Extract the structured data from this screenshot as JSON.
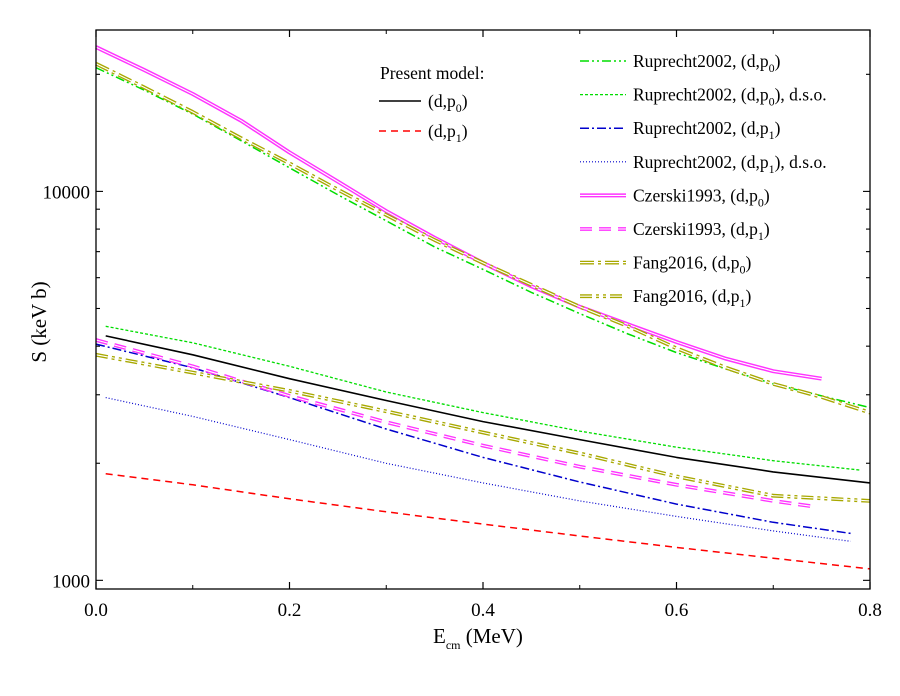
{
  "chart_data": {
    "type": "line",
    "xlabel_main": "E",
    "xlabel_sub": "cm",
    "xlabel_unit": " (MeV)",
    "ylabel": "S (keV b)",
    "xlim": [
      0.0,
      0.8
    ],
    "ylim": [
      950,
      26000
    ],
    "yscale": "log",
    "x_ticks": [
      0.0,
      0.2,
      0.4,
      0.6,
      0.8
    ],
    "x_tick_labels": [
      "0.0",
      "0.2",
      "0.4",
      "0.6",
      "0.8"
    ],
    "y_tick_labels": [
      {
        "value": 1000,
        "label": "1000"
      },
      {
        "value": 10000,
        "label": "10000"
      }
    ],
    "legend_header": "Present model:",
    "legend_left": [
      {
        "series": "present_dp0",
        "label_pre": "(d,p",
        "label_sub": "0",
        "label_post": ")"
      },
      {
        "series": "present_dp1",
        "label_pre": "(d,p",
        "label_sub": "1",
        "label_post": ")"
      }
    ],
    "legend_right": [
      {
        "series": "rup_dp0",
        "label_pre": "Ruprecht2002, (d,p",
        "label_sub": "0",
        "label_post": ")"
      },
      {
        "series": "rup_dp0_dso",
        "label_pre": "Ruprecht2002, (d,p",
        "label_sub": "0",
        "label_post": "), d.s.o."
      },
      {
        "series": "rup_dp1",
        "label_pre": "Ruprecht2002, (d,p",
        "label_sub": "1",
        "label_post": ")"
      },
      {
        "series": "rup_dp1_dso",
        "label_pre": "Ruprecht2002, (d,p",
        "label_sub": "1",
        "label_post": "), d.s.o."
      },
      {
        "series": "cze_dp0",
        "label_pre": "Czerski1993, (d,p",
        "label_sub": "0",
        "label_post": ")"
      },
      {
        "series": "cze_dp1",
        "label_pre": "Czerski1993, (d,p",
        "label_sub": "1",
        "label_post": ")"
      },
      {
        "series": "fang_dp0",
        "label_pre": "Fang2016, (d,p",
        "label_sub": "0",
        "label_post": ")"
      },
      {
        "series": "fang_dp1",
        "label_pre": "Fang2016, (d,p",
        "label_sub": "1",
        "label_post": ")"
      }
    ],
    "series": [
      {
        "id": "present_dp0",
        "name": "Present model (d,p0)",
        "color": "#000000",
        "style": "solid",
        "width": 1.6,
        "x": [
          0.01,
          0.1,
          0.2,
          0.3,
          0.4,
          0.5,
          0.6,
          0.7,
          0.8
        ],
        "y": [
          4250,
          3800,
          3300,
          2900,
          2560,
          2300,
          2070,
          1900,
          1780
        ]
      },
      {
        "id": "present_dp1",
        "name": "Present model (d,p1)",
        "color": "#ff0000",
        "style": "dash",
        "width": 1.5,
        "x": [
          0.01,
          0.1,
          0.2,
          0.3,
          0.4,
          0.5,
          0.6,
          0.7,
          0.8
        ],
        "y": [
          1880,
          1760,
          1620,
          1500,
          1395,
          1300,
          1215,
          1140,
          1070
        ]
      },
      {
        "id": "rup_dp0",
        "name": "Ruprecht2002 (d,p0)",
        "color": "#00dd00",
        "style": "dashdotdot",
        "width": 1.5,
        "x": [
          0.0,
          0.05,
          0.1,
          0.15,
          0.2,
          0.25,
          0.3,
          0.35,
          0.4,
          0.45,
          0.5,
          0.55,
          0.6,
          0.65,
          0.7,
          0.75,
          0.8
        ],
        "y": [
          20800,
          18200,
          15800,
          13500,
          11500,
          9800,
          8400,
          7200,
          6300,
          5500,
          4850,
          4300,
          3850,
          3500,
          3200,
          2980,
          2780
        ]
      },
      {
        "id": "rup_dp0_dso",
        "name": "Ruprecht2002 (d,p0) d.s.o.",
        "color": "#00dd00",
        "style": "shortdash",
        "width": 1.3,
        "x": [
          0.01,
          0.1,
          0.2,
          0.3,
          0.4,
          0.5,
          0.6,
          0.7,
          0.79
        ],
        "y": [
          4500,
          4080,
          3550,
          3050,
          2700,
          2420,
          2200,
          2030,
          1920
        ]
      },
      {
        "id": "rup_dp1",
        "name": "Ruprecht2002 (d,p1)",
        "color": "#0000cc",
        "style": "dashdot",
        "width": 1.5,
        "x": [
          0.0,
          0.1,
          0.2,
          0.3,
          0.4,
          0.5,
          0.6,
          0.7,
          0.78
        ],
        "y": [
          4050,
          3520,
          2950,
          2450,
          2070,
          1790,
          1570,
          1410,
          1320
        ]
      },
      {
        "id": "rup_dp1_dso",
        "name": "Ruprecht2002 (d,p1) d.s.o.",
        "color": "#0000cc",
        "style": "dot",
        "width": 1.2,
        "x": [
          0.01,
          0.1,
          0.2,
          0.3,
          0.4,
          0.5,
          0.6,
          0.7,
          0.78
        ],
        "y": [
          2950,
          2640,
          2300,
          2000,
          1780,
          1600,
          1460,
          1340,
          1260
        ]
      },
      {
        "id": "cze_dp0",
        "name": "Czerski1993 (d,p0)",
        "color": "#ff33ff",
        "style": "double-solid",
        "width": 2.6,
        "x": [
          0.0,
          0.05,
          0.1,
          0.15,
          0.2,
          0.25,
          0.3,
          0.35,
          0.4,
          0.45,
          0.5,
          0.55,
          0.6,
          0.65,
          0.7,
          0.75
        ],
        "y": [
          23500,
          20500,
          17800,
          15200,
          12600,
          10600,
          8900,
          7600,
          6550,
          5700,
          5050,
          4550,
          4100,
          3720,
          3450,
          3300
        ]
      },
      {
        "id": "cze_dp1",
        "name": "Czerski1993 (d,p1)",
        "color": "#ff33ff",
        "style": "double-dash",
        "width": 2.4,
        "x": [
          0.0,
          0.1,
          0.2,
          0.3,
          0.4,
          0.5,
          0.6,
          0.7,
          0.74
        ],
        "y": [
          4150,
          3550,
          2980,
          2550,
          2220,
          1960,
          1760,
          1600,
          1550
        ]
      },
      {
        "id": "fang_dp0",
        "name": "Fang2016 (d,p0)",
        "color": "#a8a800",
        "style": "double-dashdot",
        "width": 2.4,
        "x": [
          0.0,
          0.05,
          0.1,
          0.15,
          0.2,
          0.25,
          0.3,
          0.35,
          0.4,
          0.45,
          0.5,
          0.55,
          0.6,
          0.65,
          0.7,
          0.75,
          0.8
        ],
        "y": [
          21300,
          18500,
          16000,
          13700,
          11800,
          10100,
          8700,
          7500,
          6550,
          5750,
          5050,
          4500,
          3950,
          3530,
          3200,
          2960,
          2700
        ]
      },
      {
        "id": "fang_dp1",
        "name": "Fang2016 (d,p1)",
        "color": "#a8a800",
        "style": "double-dashdotdot",
        "width": 2.4,
        "x": [
          0.0,
          0.1,
          0.2,
          0.3,
          0.4,
          0.5,
          0.6,
          0.7,
          0.8
        ],
        "y": [
          3800,
          3420,
          3070,
          2720,
          2400,
          2120,
          1850,
          1650,
          1600
        ]
      }
    ]
  }
}
